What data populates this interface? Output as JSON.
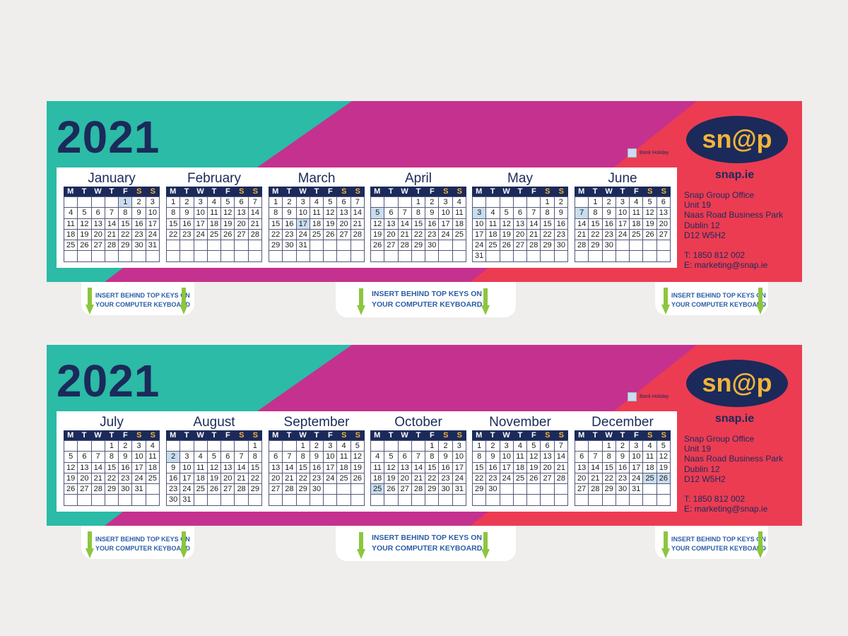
{
  "strips": [
    {
      "year": "2021",
      "legend": "Bank Holiday",
      "months": [
        {
          "name": "January",
          "offset": 4,
          "days": 31,
          "holidays": [
            1
          ]
        },
        {
          "name": "February",
          "offset": 0,
          "days": 28,
          "holidays": []
        },
        {
          "name": "March",
          "offset": 0,
          "days": 31,
          "holidays": [
            17
          ]
        },
        {
          "name": "April",
          "offset": 3,
          "days": 30,
          "holidays": [
            5
          ]
        },
        {
          "name": "May",
          "offset": 5,
          "days": 31,
          "holidays": [
            3
          ]
        },
        {
          "name": "June",
          "offset": 1,
          "days": 30,
          "holidays": [
            7
          ]
        }
      ]
    },
    {
      "year": "2021",
      "legend": "Bank Holiday",
      "months": [
        {
          "name": "July",
          "offset": 3,
          "days": 31,
          "holidays": []
        },
        {
          "name": "August",
          "offset": 6,
          "days": 31,
          "holidays": [
            2
          ]
        },
        {
          "name": "September",
          "offset": 2,
          "days": 30,
          "holidays": []
        },
        {
          "name": "October",
          "offset": 4,
          "days": 31,
          "holidays": [
            25
          ]
        },
        {
          "name": "November",
          "offset": 0,
          "days": 30,
          "holidays": []
        },
        {
          "name": "December",
          "offset": 2,
          "days": 31,
          "holidays": [
            25,
            26
          ]
        }
      ]
    }
  ],
  "weekdays": [
    "M",
    "T",
    "W",
    "T",
    "F",
    "S",
    "S"
  ],
  "brand": {
    "logo_text": "sn@p",
    "site": "snap.ie",
    "office_lines": [
      "Snap Group Office",
      "Unit 19",
      "Naas Road Business Park",
      "Dublin 12",
      "D12 W5H2"
    ],
    "phone": "T: 1850 812 002",
    "email": "E: marketing@snap.ie"
  },
  "tab_text_line1": "INSERT BEHIND TOP KEYS ON",
  "tab_text_line2": "YOUR COMPUTER KEYBOARD",
  "colors": {
    "teal": "#2bbba6",
    "magenta": "#c5318f",
    "coral": "#ec3c52",
    "navy": "#1b2a5a",
    "gold": "#f2b43a",
    "holiday": "#c9ddef",
    "arrow": "#8cc63f",
    "tab_text": "#2a5ea6"
  }
}
